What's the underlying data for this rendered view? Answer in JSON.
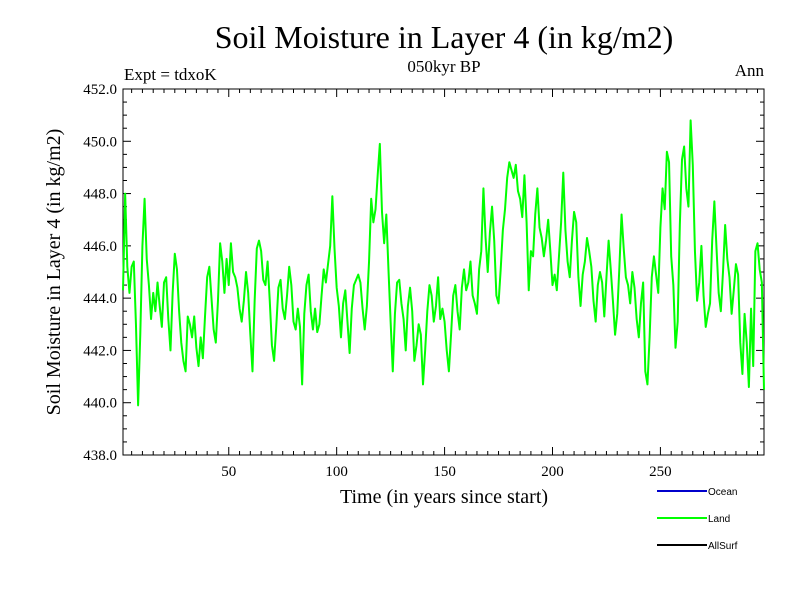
{
  "chart_data": {
    "type": "line",
    "title": "Soil Moisture in Layer 4 (in kg/m2)",
    "subtitle": "050kyr BP",
    "expt_label": "Expt = tdxoK",
    "season_label": "Ann",
    "xlabel": "Time (in years since start)",
    "ylabel": "Soil Moisture in Layer 4 (in kg/m2)",
    "xlim": [
      1,
      298
    ],
    "ylim": [
      438.0,
      452.0
    ],
    "x_ticks": [
      50,
      100,
      150,
      200,
      250
    ],
    "y_ticks": [
      "438.0",
      "440.0",
      "442.0",
      "444.0",
      "446.0",
      "448.0",
      "450.0",
      "452.0"
    ],
    "legend": [
      {
        "name": "Ocean",
        "color": "#0000cc"
      },
      {
        "name": "Land",
        "color": "#00ff00"
      },
      {
        "name": "AllSurf",
        "color": "#000000"
      }
    ],
    "series": [
      {
        "name": "Land",
        "color": "#00ff00",
        "x_start": 1,
        "x_step": 1,
        "values": [
          444.3,
          448.0,
          445.2,
          444.2,
          445.2,
          445.4,
          443.0,
          439.9,
          442.6,
          446.0,
          447.8,
          445.5,
          444.5,
          443.2,
          444.2,
          443.5,
          444.6,
          443.7,
          442.9,
          444.6,
          444.8,
          443.2,
          442.0,
          444.2,
          445.7,
          445.1,
          443.5,
          442.3,
          441.6,
          441.2,
          443.3,
          443.0,
          442.5,
          443.3,
          442.1,
          441.4,
          442.5,
          441.7,
          443.3,
          444.8,
          445.2,
          444.0,
          442.8,
          442.3,
          443.9,
          446.1,
          445.4,
          444.2,
          445.5,
          444.5,
          446.1,
          445.0,
          444.8,
          444.4,
          443.6,
          443.1,
          443.9,
          445.0,
          444.2,
          442.6,
          441.2,
          443.9,
          445.9,
          446.2,
          445.8,
          444.7,
          444.5,
          445.4,
          443.9,
          442.2,
          441.6,
          442.9,
          444.4,
          444.7,
          443.6,
          443.2,
          444.1,
          445.2,
          444.5,
          443.1,
          442.8,
          443.6,
          442.9,
          440.7,
          443.4,
          444.5,
          444.9,
          443.5,
          442.8,
          443.6,
          442.7,
          443.0,
          444.1,
          445.1,
          444.6,
          445.3,
          446.0,
          447.9,
          445.9,
          444.4,
          443.7,
          442.5,
          443.8,
          444.3,
          443.1,
          441.9,
          443.6,
          444.5,
          444.7,
          444.9,
          444.6,
          443.6,
          442.8,
          443.7,
          445.4,
          447.8,
          446.9,
          447.4,
          448.7,
          449.9,
          447.3,
          446.1,
          447.2,
          445.1,
          443.1,
          441.2,
          443.4,
          444.6,
          444.7,
          443.8,
          443.2,
          442.0,
          443.7,
          444.4,
          443.5,
          441.6,
          442.2,
          443.0,
          442.6,
          440.7,
          442.0,
          443.5,
          444.5,
          444.1,
          443.1,
          443.7,
          444.8,
          443.2,
          443.6,
          443.1,
          442.0,
          441.2,
          442.6,
          444.1,
          444.5,
          443.5,
          442.8,
          444.4,
          445.1,
          444.3,
          444.6,
          445.4,
          444.1,
          443.8,
          443.4,
          445.1,
          445.8,
          448.2,
          446.3,
          445.0,
          446.5,
          447.5,
          446.2,
          444.1,
          443.8,
          445.1,
          446.6,
          447.4,
          448.6,
          449.2,
          448.9,
          448.6,
          449.1,
          448.1,
          447.8,
          447.1,
          448.7,
          446.9,
          444.3,
          445.8,
          445.6,
          447.2,
          448.2,
          446.7,
          446.3,
          445.6,
          446.2,
          447.0,
          445.8,
          444.5,
          444.9,
          444.3,
          445.6,
          446.9,
          448.8,
          446.6,
          445.4,
          444.8,
          446.2,
          447.3,
          446.9,
          444.8,
          443.7,
          444.9,
          445.4,
          446.3,
          445.8,
          445.2,
          443.9,
          443.1,
          444.5,
          445.0,
          444.6,
          443.3,
          444.8,
          446.2,
          445.1,
          443.9,
          442.6,
          443.4,
          445.2,
          447.2,
          445.9,
          444.8,
          444.5,
          443.8,
          445.0,
          444.4,
          443.2,
          442.5,
          443.8,
          444.6,
          441.2,
          440.7,
          442.5,
          444.8,
          445.6,
          444.9,
          444.2,
          446.7,
          448.2,
          447.4,
          449.6,
          449.2,
          445.6,
          444.5,
          442.1,
          443.1,
          446.8,
          449.3,
          449.8,
          448.2,
          447.5,
          450.8,
          449.1,
          445.8,
          443.9,
          444.6,
          446.0,
          444.1,
          442.9,
          443.4,
          443.8,
          446.2,
          447.7,
          445.9,
          444.2,
          443.5,
          445.0,
          446.8,
          445.5,
          444.8,
          443.4,
          444.3,
          445.3,
          444.9,
          442.3,
          441.1,
          443.4,
          442.3,
          440.6,
          443.6,
          441.4,
          445.8,
          446.1,
          445.1,
          444.6,
          440.5
        ]
      },
      {
        "name": "Ocean",
        "color": "#0000cc",
        "values": []
      },
      {
        "name": "AllSurf",
        "color": "#000000",
        "values": []
      }
    ]
  }
}
